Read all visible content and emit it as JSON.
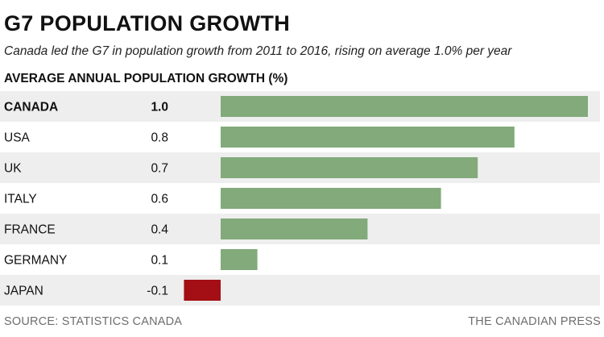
{
  "chart_data": {
    "type": "bar",
    "orientation": "horizontal",
    "title": "G7 POPULATION GROWTH",
    "subtitle": "Canada led the G7 in population growth from 2011 to 2016, rising on average 1.0% per year",
    "measure_label": "AVERAGE ANNUAL POPULATION GROWTH (%)",
    "categories": [
      "CANADA",
      "USA",
      "UK",
      "ITALY",
      "FRANCE",
      "GERMANY",
      "JAPAN"
    ],
    "values": [
      1.0,
      0.8,
      0.7,
      0.6,
      0.4,
      0.1,
      -0.1
    ],
    "value_labels": [
      "1.0",
      "0.8",
      "0.7",
      "0.6",
      "0.4",
      "0.1",
      "-0.1"
    ],
    "highlight_category": "CANADA",
    "xlim": [
      -0.1,
      1.0
    ],
    "grid": false,
    "legend": "none",
    "colors": {
      "positive": "#82aa7a",
      "negative": "#a30f14",
      "stripe": "#eeeeee"
    }
  },
  "footer": {
    "source": "SOURCE: STATISTICS CANADA",
    "credit": "THE CANADIAN PRESS"
  }
}
